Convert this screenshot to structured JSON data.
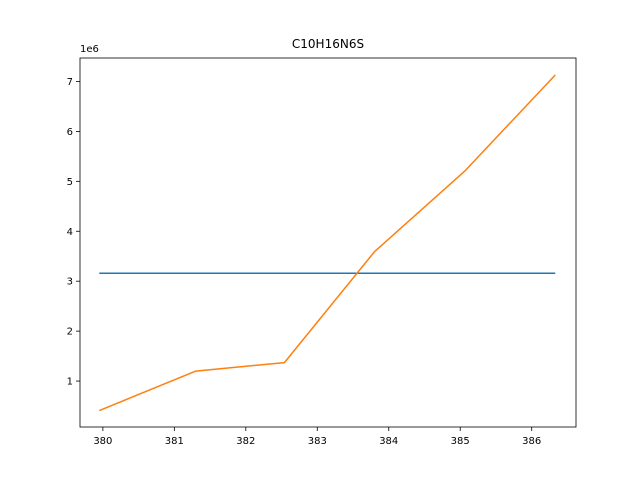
{
  "chart_data": {
    "type": "line",
    "title": "C10H16N6S",
    "xlabel": "",
    "ylabel": "",
    "y_offset_label": "1e6",
    "y_scale": 1000000,
    "xlim": [
      379.68,
      386.62
    ],
    "ylim": [
      80000,
      7470000
    ],
    "x_ticks": [
      380,
      381,
      382,
      383,
      384,
      385,
      386
    ],
    "y_ticks": [
      1,
      2,
      3,
      4,
      5,
      6,
      7
    ],
    "grid": false,
    "legend": "none",
    "series": [
      {
        "color": "#1f77b4",
        "x": [
          379.95,
          386.33
        ],
        "y": [
          3160000,
          3160000
        ]
      },
      {
        "color": "#ff7f0e",
        "x": [
          379.95,
          381.3,
          382.54,
          383.8,
          385.06,
          386.33
        ],
        "y": [
          410000,
          1200000,
          1370000,
          3590000,
          5200000,
          7130000
        ]
      }
    ]
  }
}
